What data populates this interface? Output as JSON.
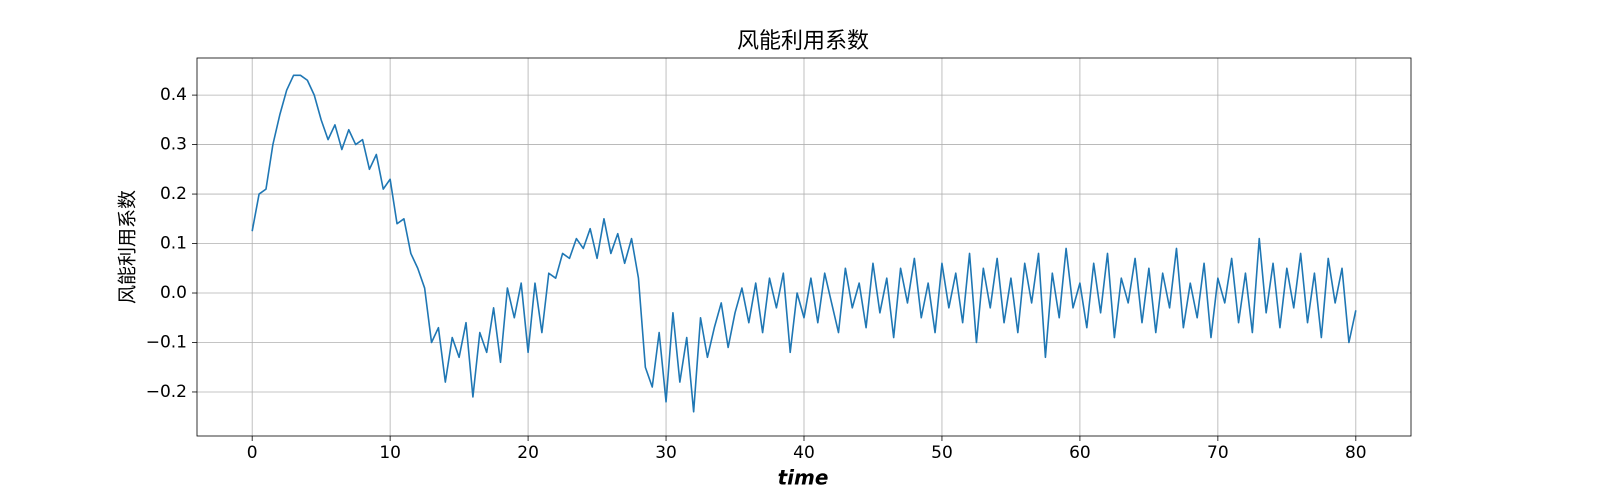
{
  "chart_data": {
    "type": "line",
    "title": "风能利用系数",
    "xlabel": "time",
    "ylabel": "风能利用系数",
    "x": [
      0,
      0.5,
      1,
      1.5,
      2,
      2.5,
      3,
      3.5,
      4,
      4.5,
      5,
      5.5,
      6,
      6.5,
      7,
      7.5,
      8,
      8.5,
      9,
      9.5,
      10,
      10.5,
      11,
      11.5,
      12,
      12.5,
      13,
      13.5,
      14,
      14.5,
      15,
      15.5,
      16,
      16.5,
      17,
      17.5,
      18,
      18.5,
      19,
      19.5,
      20,
      20.5,
      21,
      21.5,
      22,
      22.5,
      23,
      23.5,
      24,
      24.5,
      25,
      25.5,
      26,
      26.5,
      27,
      27.5,
      28,
      28.5,
      29,
      29.5,
      30,
      30.5,
      31,
      31.5,
      32,
      32.5,
      33,
      33.5,
      34,
      34.5,
      35,
      35.5,
      36,
      36.5,
      37,
      37.5,
      38,
      38.5,
      39,
      39.5,
      40,
      40.5,
      41,
      41.5,
      42,
      42.5,
      43,
      43.5,
      44,
      44.5,
      45,
      45.5,
      46,
      46.5,
      47,
      47.5,
      48,
      48.5,
      49,
      49.5,
      50,
      50.5,
      51,
      51.5,
      52,
      52.5,
      53,
      53.5,
      54,
      54.5,
      55,
      55.5,
      56,
      56.5,
      57,
      57.5,
      58,
      58.5,
      59,
      59.5,
      60,
      60.5,
      61,
      61.5,
      62,
      62.5,
      63,
      63.5,
      64,
      64.5,
      65,
      65.5,
      66,
      66.5,
      67,
      67.5,
      68,
      68.5,
      69,
      69.5,
      70,
      70.5,
      71,
      71.5,
      72,
      72.5,
      73,
      73.5,
      74,
      74.5,
      75,
      75.5,
      76,
      76.5,
      77,
      77.5,
      78,
      78.5,
      79,
      79.5,
      80
    ],
    "series": [
      {
        "name": "风能利用系数",
        "color": "#1f77b4",
        "values": [
          0.125,
          0.2,
          0.21,
          0.3,
          0.36,
          0.41,
          0.44,
          0.44,
          0.43,
          0.4,
          0.35,
          0.31,
          0.34,
          0.29,
          0.33,
          0.3,
          0.31,
          0.25,
          0.28,
          0.21,
          0.23,
          0.14,
          0.15,
          0.08,
          0.05,
          0.01,
          -0.1,
          -0.07,
          -0.18,
          -0.09,
          -0.13,
          -0.06,
          -0.21,
          -0.08,
          -0.12,
          -0.03,
          -0.14,
          0.01,
          -0.05,
          0.02,
          -0.12,
          0.02,
          -0.08,
          0.04,
          0.03,
          0.08,
          0.07,
          0.11,
          0.09,
          0.13,
          0.07,
          0.15,
          0.08,
          0.12,
          0.06,
          0.11,
          0.03,
          -0.15,
          -0.19,
          -0.08,
          -0.22,
          -0.04,
          -0.18,
          -0.09,
          -0.24,
          -0.05,
          -0.13,
          -0.07,
          -0.02,
          -0.11,
          -0.04,
          0.01,
          -0.06,
          0.02,
          -0.08,
          0.03,
          -0.03,
          0.04,
          -0.12,
          0.0,
          -0.05,
          0.03,
          -0.06,
          0.04,
          -0.02,
          -0.08,
          0.05,
          -0.03,
          0.02,
          -0.07,
          0.06,
          -0.04,
          0.03,
          -0.09,
          0.05,
          -0.02,
          0.07,
          -0.05,
          0.02,
          -0.08,
          0.06,
          -0.03,
          0.04,
          -0.06,
          0.08,
          -0.1,
          0.05,
          -0.03,
          0.07,
          -0.06,
          0.03,
          -0.08,
          0.06,
          -0.02,
          0.08,
          -0.13,
          0.04,
          -0.05,
          0.09,
          -0.03,
          0.02,
          -0.07,
          0.06,
          -0.04,
          0.08,
          -0.09,
          0.03,
          -0.02,
          0.07,
          -0.06,
          0.05,
          -0.08,
          0.04,
          -0.03,
          0.09,
          -0.07,
          0.02,
          -0.05,
          0.06,
          -0.09,
          0.03,
          -0.02,
          0.07,
          -0.06,
          0.04,
          -0.08,
          0.11,
          -0.04,
          0.06,
          -0.07,
          0.05,
          -0.03,
          0.08,
          -0.06,
          0.04,
          -0.09,
          0.07,
          -0.02,
          0.05,
          -0.1,
          -0.035
        ]
      }
    ],
    "xlim": [
      -4,
      84
    ],
    "ylim": [
      -0.289,
      0.475
    ],
    "xticks": [
      0,
      10,
      20,
      30,
      40,
      50,
      60,
      70,
      80
    ],
    "yticks": [
      {
        "value": -0.2,
        "label": "−0.2"
      },
      {
        "value": -0.1,
        "label": "−0.1"
      },
      {
        "value": 0,
        "label": "0.0"
      },
      0.1,
      0.2,
      0.3,
      0.4
    ],
    "grid": true
  }
}
